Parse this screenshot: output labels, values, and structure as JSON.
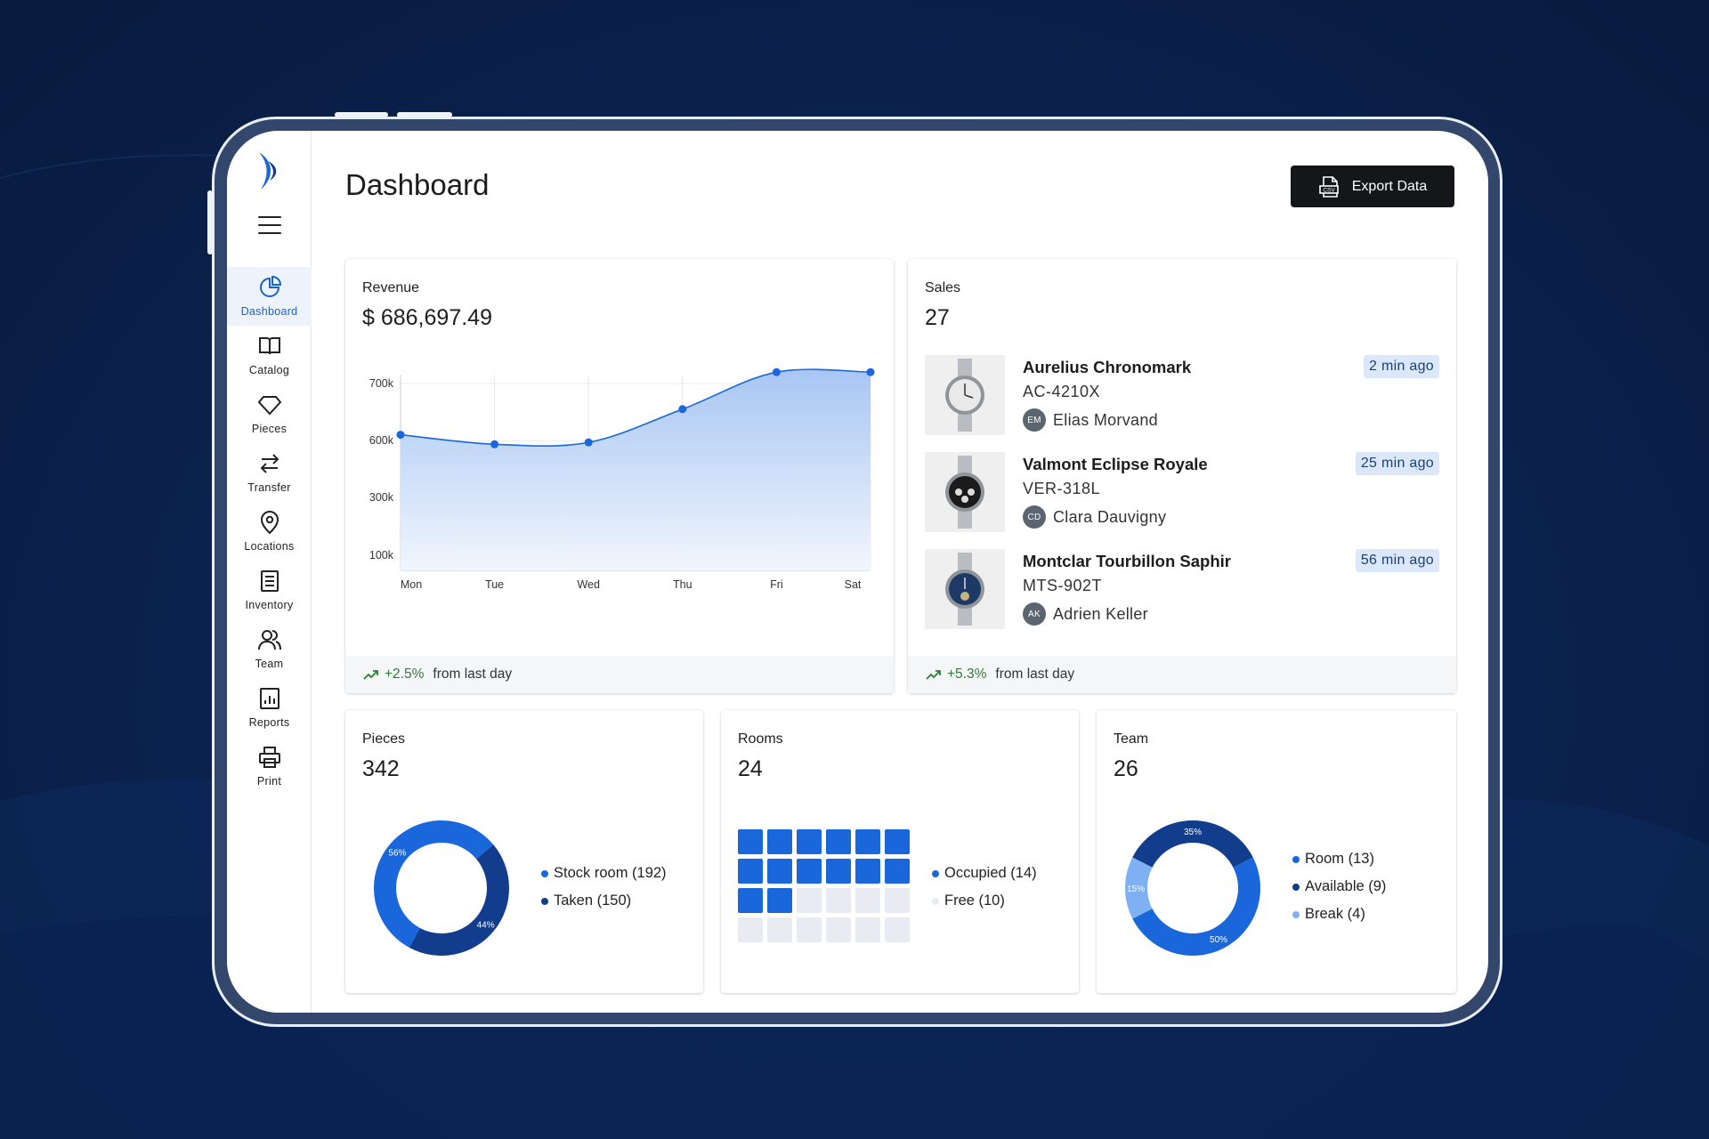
{
  "sidebar": {
    "items": [
      {
        "label": "Dashboard",
        "icon": "pie-chart-icon",
        "active": true
      },
      {
        "label": "Catalog",
        "icon": "book-icon"
      },
      {
        "label": "Pieces",
        "icon": "diamond-icon"
      },
      {
        "label": "Transfer",
        "icon": "transfer-arrows-icon"
      },
      {
        "label": "Locations",
        "icon": "location-pin-icon"
      },
      {
        "label": "Inventory",
        "icon": "list-document-icon"
      },
      {
        "label": "Team",
        "icon": "people-icon"
      },
      {
        "label": "Reports",
        "icon": "report-chart-icon"
      },
      {
        "label": "Print",
        "icon": "printer-icon"
      }
    ]
  },
  "header": {
    "title": "Dashboard",
    "export_label": "Export Data",
    "export_icon": "csv-file-icon"
  },
  "revenue": {
    "label": "Revenue",
    "value": "$ 686,697.49",
    "change": "+2.5%",
    "change_suffix": "from last day"
  },
  "sales": {
    "label": "Sales",
    "value": "27",
    "change": "+5.3%",
    "change_suffix": "from last day",
    "items": [
      {
        "name": "Aurelius Chronomark",
        "sku": "AC-4210X",
        "initials": "EM",
        "user": "Elias Morvand",
        "time": "2 min ago",
        "dial": "#e9e9e9"
      },
      {
        "name": "Valmont Eclipse Royale",
        "sku": "VER-318L",
        "initials": "CD",
        "user": "Clara Dauvigny",
        "time": "25 min ago",
        "dial": "#1b1b1b"
      },
      {
        "name": "Montclar Tourbillon Saphir",
        "sku": "MTS-902T",
        "initials": "AK",
        "user": "Adrien Keller",
        "time": "56 min ago",
        "dial": "#1d3a66"
      }
    ]
  },
  "pieces": {
    "label": "Pieces",
    "value": "342",
    "legend": [
      "Stock room (192)",
      "Taken (150)"
    ],
    "pct_labels": [
      "56%",
      "44%"
    ]
  },
  "rooms": {
    "label": "Rooms",
    "value": "24",
    "legend": [
      "Occupied (14)",
      "Free (10)"
    ],
    "occupied": 14,
    "total": 24
  },
  "team": {
    "label": "Team",
    "value": "26",
    "legend": [
      "Room (13)",
      "Available (9)",
      "Break (4)"
    ],
    "pct_labels": [
      "35%",
      "50%",
      "15%"
    ]
  },
  "colors": {
    "accent": "#1a66db",
    "dark_blue": "#123c8c",
    "light_blue": "#7fb0f4",
    "positive": "#2e7d32"
  },
  "chart_data": [
    {
      "type": "area",
      "title": "",
      "categories": [
        "Mon",
        "Tue",
        "Wed",
        "Thu",
        "Fri",
        "Sat"
      ],
      "series": [
        {
          "values": [
            610000,
            580000,
            590000,
            655000,
            720000,
            720000
          ]
        }
      ],
      "y_ticks": [
        "700k",
        "600k",
        "300k",
        "100k"
      ],
      "grid": true
    },
    {
      "type": "pie",
      "title": "Pieces",
      "series": [
        {
          "name": "Stock room",
          "values": [
            56
          ]
        },
        {
          "name": "Taken",
          "values": [
            44
          ]
        }
      ]
    },
    {
      "type": "pie",
      "title": "Team",
      "series": [
        {
          "name": "Room",
          "values": [
            50
          ]
        },
        {
          "name": "Available",
          "values": [
            35
          ]
        },
        {
          "name": "Break",
          "values": [
            15
          ]
        }
      ]
    }
  ]
}
